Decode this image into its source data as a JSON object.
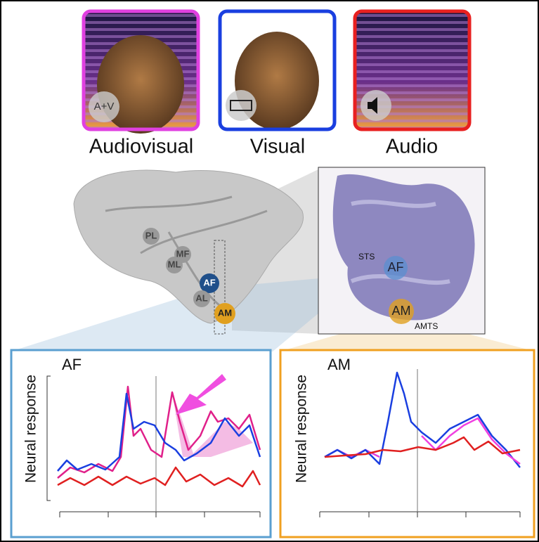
{
  "conditions": [
    {
      "label": "Audiovisual",
      "icon": "A+V"
    },
    {
      "label": "Visual"
    },
    {
      "label": "Audio"
    }
  ],
  "brain_regions": [
    "PL",
    "ML",
    "MF",
    "AF",
    "AL",
    "AM"
  ],
  "histology_labels": [
    "STS",
    "AF",
    "AM",
    "AMTS"
  ],
  "panels": [
    {
      "title": "AF",
      "y_label": "Neural response"
    },
    {
      "title": "AM",
      "y_label": "Neural response"
    }
  ]
}
